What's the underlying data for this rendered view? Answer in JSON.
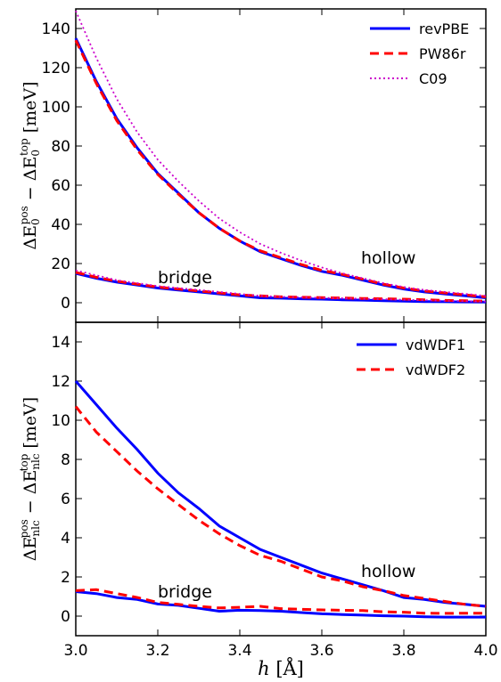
{
  "chart_data": [
    {
      "type": "line",
      "ylabel": "ΔE₀^pos − ΔE₀^top [meV]",
      "xlim": [
        3.0,
        4.0
      ],
      "ylim": [
        -10,
        150
      ],
      "x_ticks": [
        "3.0",
        "3.2",
        "3.4",
        "3.6",
        "3.8",
        "4.0"
      ],
      "y_ticks": [
        "0",
        "20",
        "40",
        "60",
        "80",
        "100",
        "120",
        "140"
      ],
      "y_tick_values": [
        0,
        20,
        40,
        60,
        80,
        100,
        120,
        140
      ],
      "legend": {
        "placement": "top-right",
        "entries": [
          "revPBE",
          "PW86r",
          "C09"
        ]
      },
      "annotations": [
        {
          "text": "hollow",
          "x": 3.7,
          "y": 20
        },
        {
          "text": "bridge",
          "x": 3.2,
          "y": 11
        }
      ],
      "x": [
        3.0,
        3.05,
        3.1,
        3.15,
        3.2,
        3.25,
        3.3,
        3.35,
        3.4,
        3.45,
        3.5,
        3.55,
        3.6,
        3.65,
        3.7,
        3.75,
        3.8,
        3.85,
        3.9,
        3.95,
        4.0
      ],
      "series": [
        {
          "name": "revPBE",
          "group": "hollow",
          "color": "#0000ff",
          "dash": "solid",
          "values": [
            135,
            113,
            94,
            79,
            66,
            56,
            46,
            38,
            31.5,
            26,
            22.5,
            19,
            16,
            14,
            11.5,
            9,
            7,
            5.5,
            4.5,
            3.5,
            2.5
          ]
        },
        {
          "name": "PW86r",
          "group": "hollow",
          "color": "#ff0000",
          "dash": "dashed",
          "values": [
            134,
            112,
            93,
            78,
            65.5,
            55.5,
            46,
            38,
            31.5,
            26.5,
            23,
            19.5,
            16.5,
            14.5,
            12,
            9.5,
            7.5,
            6,
            5,
            4,
            3
          ]
        },
        {
          "name": "C09",
          "group": "hollow",
          "color": "#cc00cc",
          "dash": "dotted",
          "values": [
            149,
            125,
            104,
            87,
            73,
            62,
            52,
            43,
            36,
            30,
            25.5,
            21.5,
            18,
            15,
            12.5,
            10,
            8,
            6.5,
            5.5,
            4.5,
            3.5
          ]
        },
        {
          "name": "revPBE",
          "group": "bridge",
          "color": "#0000ff",
          "dash": "solid",
          "values": [
            15,
            12.5,
            10.5,
            9,
            7.5,
            6.5,
            5.5,
            4.5,
            3.5,
            2.5,
            2.3,
            2,
            1.8,
            1.5,
            1.3,
            1,
            0.8,
            0.6,
            0.5,
            0.4,
            0.3
          ]
        },
        {
          "name": "PW86r",
          "group": "bridge",
          "color": "#ff0000",
          "dash": "dashed",
          "values": [
            15.5,
            13,
            11,
            9.5,
            8,
            7,
            6,
            5,
            4,
            3.5,
            3,
            2.8,
            2.6,
            2.4,
            2.2,
            2,
            1.8,
            1.5,
            1.2,
            1,
            0.8
          ]
        },
        {
          "name": "C09",
          "group": "bridge",
          "color": "#cc00cc",
          "dash": "dotted",
          "values": [
            16.5,
            14,
            11.5,
            10,
            8.5,
            7.5,
            6.5,
            5.5,
            4.5,
            3.5,
            3,
            2.8,
            2.5,
            2.3,
            2,
            1.8,
            1.5,
            1.3,
            1,
            0.8,
            0.6
          ]
        }
      ]
    },
    {
      "type": "line",
      "ylabel": "ΔE_nlc^pos − ΔE_nlc^top [meV]",
      "xlabel": "h [Å]",
      "xlim": [
        3.0,
        4.0
      ],
      "ylim": [
        -1,
        15
      ],
      "x_ticks": [
        "3.0",
        "3.2",
        "3.4",
        "3.6",
        "3.8",
        "4.0"
      ],
      "y_ticks": [
        "0",
        "2",
        "4",
        "6",
        "8",
        "10",
        "12",
        "14"
      ],
      "y_tick_values": [
        0,
        2,
        4,
        6,
        8,
        10,
        12,
        14
      ],
      "legend": {
        "placement": "top-right",
        "entries": [
          "vdWDF1",
          "vdWDF2"
        ]
      },
      "annotations": [
        {
          "text": "hollow",
          "x": 3.7,
          "y": 1.8
        },
        {
          "text": "bridge",
          "x": 3.2,
          "y": 1.1
        }
      ],
      "x": [
        3.0,
        3.05,
        3.1,
        3.15,
        3.2,
        3.25,
        3.3,
        3.35,
        3.4,
        3.45,
        3.5,
        3.55,
        3.6,
        3.65,
        3.7,
        3.75,
        3.8,
        3.85,
        3.9,
        3.95,
        4.0
      ],
      "series": [
        {
          "name": "vdWDF1",
          "group": "hollow",
          "color": "#0000ff",
          "dash": "solid",
          "values": [
            12.0,
            10.8,
            9.6,
            8.5,
            7.3,
            6.3,
            5.5,
            4.6,
            4.0,
            3.4,
            3.0,
            2.6,
            2.2,
            1.9,
            1.6,
            1.3,
            0.95,
            0.85,
            0.7,
            0.6,
            0.5
          ]
        },
        {
          "name": "vdWDF2",
          "group": "hollow",
          "color": "#ff0000",
          "dash": "dashed",
          "values": [
            10.7,
            9.4,
            8.4,
            7.4,
            6.5,
            5.7,
            4.9,
            4.2,
            3.6,
            3.1,
            2.8,
            2.4,
            2.0,
            1.8,
            1.5,
            1.3,
            1.05,
            0.9,
            0.75,
            0.6,
            0.5
          ]
        },
        {
          "name": "vdWDF1",
          "group": "bridge",
          "color": "#0000ff",
          "dash": "solid",
          "values": [
            1.25,
            1.15,
            0.95,
            0.85,
            0.62,
            0.55,
            0.4,
            0.25,
            0.3,
            0.28,
            0.25,
            0.18,
            0.12,
            0.08,
            0.05,
            0.02,
            0.0,
            -0.03,
            -0.05,
            -0.05,
            -0.05
          ]
        },
        {
          "name": "vdWDF2",
          "group": "bridge",
          "color": "#ff0000",
          "dash": "dashed",
          "values": [
            1.3,
            1.35,
            1.15,
            0.95,
            0.7,
            0.6,
            0.5,
            0.42,
            0.45,
            0.5,
            0.38,
            0.35,
            0.32,
            0.3,
            0.28,
            0.22,
            0.2,
            0.15,
            0.14,
            0.15,
            0.15
          ]
        }
      ]
    }
  ]
}
